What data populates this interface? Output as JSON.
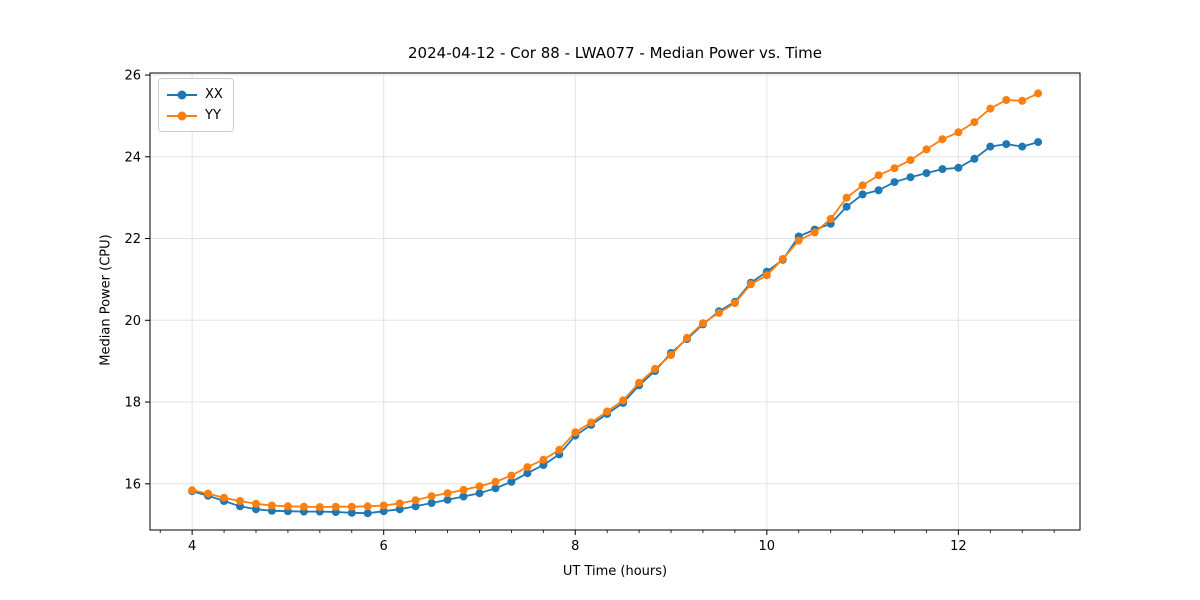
{
  "chart_data": {
    "type": "line",
    "title": "2024-04-12 - Cor 88 - LWA077 - Median Power vs. Time",
    "xlabel": "UT Time (hours)",
    "ylabel": "Median Power (CPU)",
    "xlim": [
      3.56,
      13.27
    ],
    "ylim": [
      14.87,
      26.05
    ],
    "x_ticks": [
      4,
      6,
      8,
      10,
      12
    ],
    "y_ticks": [
      16,
      18,
      20,
      22,
      24,
      26
    ],
    "x_minor_tick_step": 0.3333333,
    "grid": "major gridlines only, light gray",
    "legend_position": "upper-left",
    "marker": "circle",
    "x": [
      4.0,
      4.167,
      4.333,
      4.5,
      4.667,
      4.833,
      5.0,
      5.167,
      5.333,
      5.5,
      5.667,
      5.833,
      6.0,
      6.167,
      6.333,
      6.5,
      6.667,
      6.833,
      7.0,
      7.167,
      7.333,
      7.5,
      7.667,
      7.833,
      8.0,
      8.167,
      8.333,
      8.5,
      8.667,
      8.833,
      9.0,
      9.167,
      9.333,
      9.5,
      9.667,
      9.833,
      10.0,
      10.167,
      10.333,
      10.5,
      10.667,
      10.833,
      11.0,
      11.167,
      11.333,
      11.5,
      11.667,
      11.833,
      12.0,
      12.167,
      12.333,
      12.5,
      12.667,
      12.833
    ],
    "series": [
      {
        "name": "XX",
        "color": "#1f77b4",
        "values": [
          15.82,
          15.71,
          15.58,
          15.45,
          15.38,
          15.34,
          15.33,
          15.32,
          15.32,
          15.31,
          15.29,
          15.28,
          15.33,
          15.38,
          15.45,
          15.53,
          15.61,
          15.69,
          15.77,
          15.89,
          16.05,
          16.26,
          16.46,
          16.72,
          17.18,
          17.44,
          17.71,
          17.98,
          18.41,
          18.76,
          19.2,
          19.54,
          19.9,
          20.22,
          20.45,
          20.92,
          21.19,
          21.48,
          22.05,
          22.22,
          22.36,
          22.78,
          23.08,
          23.18,
          23.38,
          23.5,
          23.6,
          23.7,
          23.73,
          23.95,
          24.25,
          24.31,
          24.25,
          24.36
        ]
      },
      {
        "name": "YY",
        "color": "#ff7f0e",
        "values": [
          15.84,
          15.76,
          15.66,
          15.58,
          15.51,
          15.47,
          15.45,
          15.44,
          15.43,
          15.44,
          15.44,
          15.45,
          15.47,
          15.52,
          15.6,
          15.7,
          15.77,
          15.85,
          15.94,
          16.05,
          16.2,
          16.41,
          16.59,
          16.83,
          17.26,
          17.5,
          17.77,
          18.04,
          18.47,
          18.81,
          19.15,
          19.57,
          19.93,
          20.18,
          20.42,
          20.88,
          21.1,
          21.5,
          21.95,
          22.15,
          22.48,
          23.0,
          23.3,
          23.55,
          23.72,
          23.92,
          24.18,
          24.43,
          24.6,
          24.85,
          25.18,
          25.39,
          25.37,
          25.55
        ]
      }
    ],
    "style": {
      "grid_color": "#e3e3e3",
      "spine_color": "#000000",
      "background": "#ffffff",
      "line_width": 1.8,
      "marker_radius": 4
    }
  }
}
